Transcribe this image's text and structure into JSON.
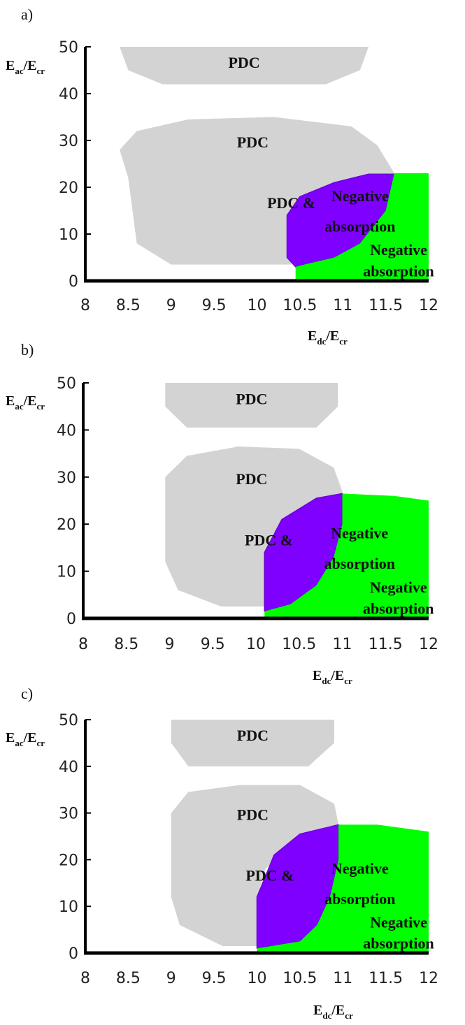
{
  "chart_data": [
    {
      "type": "region-map",
      "panel_label": "a)",
      "xlabel": {
        "main": "E",
        "sub": "dc",
        "sep": "/E",
        "sub2": "cr"
      },
      "ylabel": {
        "main": "E",
        "sub": "ac",
        "sep": "/E",
        "sub2": "cr"
      },
      "xlim": [
        8,
        12
      ],
      "ylim": [
        0,
        50
      ],
      "xticks": [
        "8",
        "8.5",
        "9",
        "9.5",
        "10",
        "10.5",
        "11",
        "11.5",
        "12"
      ],
      "yticks": [
        "0",
        "10",
        "20",
        "30",
        "40",
        "50"
      ],
      "colors": {
        "pdc": "#d3d3d3",
        "both": "#7f00ff",
        "neg": "#00ff00"
      },
      "regions": [
        {
          "kind": "pdc",
          "label": "PDC",
          "points": [
            [
              8.4,
              50
            ],
            [
              11.3,
              50
            ],
            [
              11.2,
              45
            ],
            [
              10.8,
              42
            ],
            [
              8.9,
              42
            ],
            [
              8.5,
              45
            ]
          ],
          "label_at": [
            9.85,
            45.5
          ]
        },
        {
          "kind": "pdc",
          "label": "PDC",
          "points": [
            [
              8.4,
              28
            ],
            [
              8.6,
              32
            ],
            [
              9.2,
              34.5
            ],
            [
              10.2,
              35
            ],
            [
              11.1,
              33
            ],
            [
              11.4,
              29
            ],
            [
              11.6,
              23
            ],
            [
              11.5,
              20
            ],
            [
              11.0,
              19
            ],
            [
              10.8,
              17
            ],
            [
              10.5,
              14
            ],
            [
              10.4,
              10
            ],
            [
              10.4,
              3.5
            ],
            [
              9.0,
              3.5
            ],
            [
              8.6,
              8
            ],
            [
              8.5,
              22
            ]
          ],
          "label_at": [
            9.95,
            28.5
          ]
        },
        {
          "kind": "both",
          "label": "PDC & Negative absorption",
          "points": [
            [
              10.35,
              14
            ],
            [
              10.5,
              18
            ],
            [
              10.9,
              21
            ],
            [
              11.3,
              22.8
            ],
            [
              11.6,
              22.8
            ],
            [
              11.5,
              15
            ],
            [
              11.2,
              8
            ],
            [
              10.9,
              5
            ],
            [
              10.55,
              3.5
            ],
            [
              10.45,
              3
            ],
            [
              10.35,
              5
            ]
          ],
          "labels": [
            {
              "text": "PDC &",
              "at": [
                10.4,
                15.5
              ]
            },
            {
              "text": "Negative",
              "at": [
                11.2,
                17
              ]
            },
            {
              "text": "absorption",
              "at": [
                11.2,
                10.5
              ]
            }
          ]
        },
        {
          "kind": "neg",
          "label": "Negative absorption",
          "points": [
            [
              10.45,
              0
            ],
            [
              12,
              0
            ],
            [
              12,
              23
            ],
            [
              11.6,
              23
            ],
            [
              11.5,
              15
            ],
            [
              11.2,
              8
            ],
            [
              10.9,
              5
            ],
            [
              10.55,
              3.5
            ],
            [
              10.45,
              3
            ]
          ],
          "labels": [
            {
              "text": "Negative",
              "at": [
                11.65,
                5.5
              ]
            },
            {
              "text": "absorption",
              "at": [
                11.65,
                1.0
              ]
            }
          ]
        }
      ]
    },
    {
      "type": "region-map",
      "panel_label": "b)",
      "xlabel": {
        "main": "E",
        "sub": "dc",
        "sep": "/E",
        "sub2": "cr"
      },
      "ylabel": {
        "main": "E",
        "sub": "ac",
        "sep": "/E",
        "sub2": "cr"
      },
      "xlim": [
        8,
        12
      ],
      "ylim": [
        0,
        50
      ],
      "xticks": [
        "8",
        "8.5",
        "9",
        "9.5",
        "10",
        "10.5",
        "11",
        "11.5",
        "12"
      ],
      "yticks": [
        "0",
        "10",
        "20",
        "30",
        "40",
        "50"
      ],
      "colors": {
        "pdc": "#d3d3d3",
        "both": "#7f00ff",
        "neg": "#00ff00"
      },
      "regions": [
        {
          "kind": "pdc",
          "label": "PDC",
          "points": [
            [
              8.95,
              50
            ],
            [
              10.95,
              50
            ],
            [
              10.95,
              45
            ],
            [
              10.7,
              40.5
            ],
            [
              9.2,
              40.5
            ],
            [
              8.95,
              45
            ]
          ],
          "label_at": [
            9.95,
            45.5
          ]
        },
        {
          "kind": "pdc",
          "label": "PDC",
          "points": [
            [
              8.95,
              30
            ],
            [
              9.2,
              34.5
            ],
            [
              9.8,
              36.5
            ],
            [
              10.5,
              36
            ],
            [
              10.9,
              32
            ],
            [
              11.0,
              27
            ],
            [
              11.0,
              26
            ],
            [
              10.8,
              25.5
            ],
            [
              10.5,
              22
            ],
            [
              10.2,
              18
            ],
            [
              10.1,
              12
            ],
            [
              10.1,
              2.5
            ],
            [
              9.6,
              2.5
            ],
            [
              9.1,
              6
            ],
            [
              8.95,
              12
            ]
          ],
          "label_at": [
            9.95,
            28.5
          ]
        },
        {
          "kind": "both",
          "label": "PDC & Negative absorption",
          "points": [
            [
              10.1,
              14
            ],
            [
              10.3,
              21
            ],
            [
              10.7,
              25.5
            ],
            [
              11.0,
              26.5
            ],
            [
              11.0,
              20
            ],
            [
              10.9,
              13
            ],
            [
              10.7,
              7
            ],
            [
              10.4,
              3
            ],
            [
              10.1,
              1.5
            ]
          ],
          "labels": [
            {
              "text": "PDC &",
              "at": [
                10.15,
                15.5
              ]
            },
            {
              "text": "Negative",
              "at": [
                11.2,
                17
              ]
            },
            {
              "text": "absorption",
              "at": [
                11.2,
                10.5
              ]
            }
          ]
        },
        {
          "kind": "neg",
          "label": "Negative absorption",
          "points": [
            [
              10.1,
              0
            ],
            [
              12,
              0
            ],
            [
              12,
              25
            ],
            [
              11.6,
              26
            ],
            [
              11.0,
              26.5
            ],
            [
              11.0,
              20
            ],
            [
              10.9,
              13
            ],
            [
              10.7,
              7
            ],
            [
              10.4,
              3
            ],
            [
              10.1,
              1.5
            ]
          ],
          "labels": [
            {
              "text": "Negative",
              "at": [
                11.65,
                5.5
              ]
            },
            {
              "text": "absorption",
              "at": [
                11.65,
                1.0
              ]
            }
          ]
        }
      ]
    },
    {
      "type": "region-map",
      "panel_label": "c)",
      "xlabel": {
        "main": "E",
        "sub": "dc",
        "sep": "/E",
        "sub2": "cr"
      },
      "ylabel": {
        "main": "E",
        "sub": "ac",
        "sep": "/E",
        "sub2": "cr"
      },
      "xlim": [
        8,
        12
      ],
      "ylim": [
        0,
        50
      ],
      "xticks": [
        "8",
        "8.5",
        "9",
        "9.5",
        "10",
        "10.5",
        "11",
        "11.5",
        "12"
      ],
      "yticks": [
        "0",
        "10",
        "20",
        "30",
        "40",
        "50"
      ],
      "colors": {
        "pdc": "#d3d3d3",
        "both": "#7f00ff",
        "neg": "#00ff00"
      },
      "regions": [
        {
          "kind": "pdc",
          "label": "PDC",
          "points": [
            [
              9.0,
              50
            ],
            [
              10.9,
              50
            ],
            [
              10.9,
              45
            ],
            [
              10.6,
              40
            ],
            [
              9.2,
              40
            ],
            [
              9.0,
              45
            ]
          ],
          "label_at": [
            9.95,
            45.5
          ]
        },
        {
          "kind": "pdc",
          "label": "PDC",
          "points": [
            [
              9.0,
              30
            ],
            [
              9.2,
              34.5
            ],
            [
              9.8,
              36
            ],
            [
              10.5,
              36
            ],
            [
              10.9,
              32
            ],
            [
              10.95,
              27.5
            ],
            [
              10.8,
              27
            ],
            [
              10.4,
              24
            ],
            [
              10.1,
              18
            ],
            [
              10.0,
              12
            ],
            [
              10.0,
              1.5
            ],
            [
              9.6,
              1.5
            ],
            [
              9.1,
              6
            ],
            [
              9.0,
              12
            ]
          ],
          "label_at": [
            9.95,
            28.5
          ]
        },
        {
          "kind": "both",
          "label": "PDC & Negative absorption",
          "points": [
            [
              10.0,
              12
            ],
            [
              10.2,
              21
            ],
            [
              10.5,
              25.5
            ],
            [
              10.95,
              27.5
            ],
            [
              10.95,
              20
            ],
            [
              10.85,
              12
            ],
            [
              10.7,
              6
            ],
            [
              10.5,
              2.5
            ],
            [
              10.0,
              1.0
            ]
          ],
          "labels": [
            {
              "text": "PDC &",
              "at": [
                10.15,
                15.5
              ]
            },
            {
              "text": "Negative",
              "at": [
                11.2,
                17
              ]
            },
            {
              "text": "absorption",
              "at": [
                11.2,
                10.5
              ]
            }
          ]
        },
        {
          "kind": "neg",
          "label": "Negative absorption",
          "points": [
            [
              10.0,
              0
            ],
            [
              12,
              0
            ],
            [
              12,
              26
            ],
            [
              11.4,
              27.5
            ],
            [
              10.95,
              27.5
            ],
            [
              10.95,
              20
            ],
            [
              10.85,
              12
            ],
            [
              10.7,
              6
            ],
            [
              10.5,
              2.5
            ],
            [
              10.0,
              1.0
            ]
          ],
          "labels": [
            {
              "text": "Negative",
              "at": [
                11.65,
                5.5
              ]
            },
            {
              "text": "absorption",
              "at": [
                11.65,
                1.0
              ]
            }
          ]
        }
      ]
    }
  ]
}
